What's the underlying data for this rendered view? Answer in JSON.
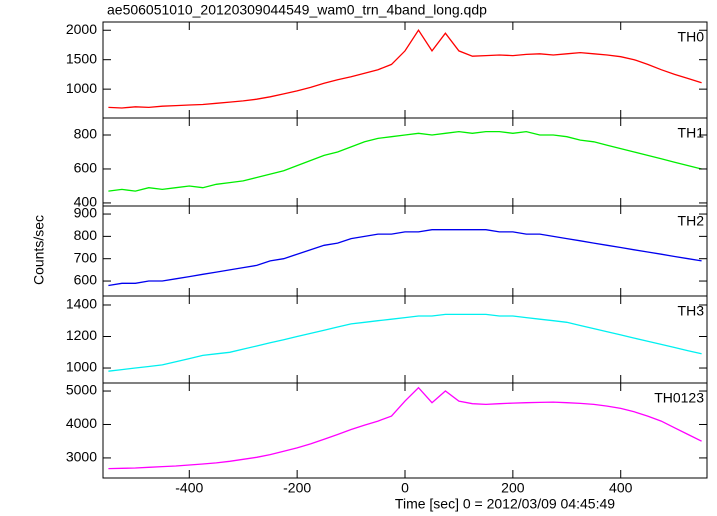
{
  "chart_data": {
    "type": "line",
    "title": "ae506051010_20120309044549_wam0_trn_4band_long.qdp",
    "x_label": "Time [sec] 0 = 2012/03/09 04:45:49",
    "y_label": "Counts/sec",
    "xlim": [
      -560,
      560
    ],
    "xticks": [
      -400,
      -200,
      0,
      200,
      400
    ],
    "x": [
      -550,
      -525,
      -500,
      -475,
      -450,
      -425,
      -400,
      -375,
      -350,
      -325,
      -300,
      -275,
      -250,
      -225,
      -200,
      -175,
      -150,
      -125,
      -100,
      -75,
      -50,
      -25,
      0,
      25,
      50,
      75,
      100,
      125,
      150,
      175,
      200,
      225,
      250,
      275,
      300,
      325,
      350,
      375,
      400,
      425,
      450,
      475,
      500,
      525,
      550
    ],
    "series": [
      {
        "name": "TH0",
        "color": "#ff0000",
        "ylim": [
          510,
          2140
        ],
        "yticks": [
          1000,
          1500,
          2000
        ],
        "values": [
          690,
          680,
          700,
          690,
          710,
          720,
          730,
          740,
          760,
          780,
          800,
          830,
          870,
          920,
          970,
          1030,
          1100,
          1160,
          1210,
          1270,
          1330,
          1420,
          1650,
          2000,
          1650,
          1950,
          1650,
          1560,
          1570,
          1580,
          1570,
          1590,
          1600,
          1580,
          1600,
          1620,
          1600,
          1580,
          1550,
          1500,
          1420,
          1330,
          1250,
          1180,
          1110
        ]
      },
      {
        "name": "TH1",
        "color": "#00ee00",
        "ylim": [
          382,
          900
        ],
        "yticks": [
          400,
          600,
          800
        ],
        "values": [
          470,
          480,
          470,
          490,
          480,
          490,
          500,
          490,
          510,
          520,
          530,
          550,
          570,
          590,
          620,
          650,
          680,
          700,
          730,
          760,
          780,
          790,
          800,
          810,
          800,
          810,
          820,
          810,
          820,
          820,
          810,
          820,
          800,
          800,
          790,
          770,
          760,
          740,
          720,
          700,
          680,
          660,
          640,
          620,
          600
        ]
      },
      {
        "name": "TH2",
        "color": "#0000ee",
        "ylim": [
          533,
          936
        ],
        "yticks": [
          600,
          700,
          800,
          900
        ],
        "values": [
          580,
          590,
          590,
          600,
          600,
          610,
          620,
          630,
          640,
          650,
          660,
          670,
          690,
          700,
          720,
          740,
          760,
          770,
          790,
          800,
          810,
          810,
          820,
          820,
          830,
          830,
          830,
          830,
          830,
          820,
          820,
          810,
          810,
          800,
          790,
          780,
          770,
          760,
          750,
          740,
          730,
          720,
          710,
          700,
          690
        ]
      },
      {
        "name": "TH3",
        "color": "#00f0f0",
        "ylim": [
          905,
          1457
        ],
        "yticks": [
          1000,
          1200,
          1400
        ],
        "values": [
          980,
          990,
          1000,
          1010,
          1020,
          1040,
          1060,
          1080,
          1090,
          1100,
          1120,
          1140,
          1160,
          1180,
          1200,
          1220,
          1240,
          1260,
          1280,
          1290,
          1300,
          1310,
          1320,
          1330,
          1330,
          1340,
          1340,
          1340,
          1340,
          1330,
          1330,
          1320,
          1310,
          1300,
          1290,
          1270,
          1250,
          1230,
          1210,
          1190,
          1170,
          1150,
          1130,
          1110,
          1090
        ]
      },
      {
        "name": "TH0123",
        "color": "#ff00ff",
        "ylim": [
          2400,
          5240
        ],
        "yticks": [
          3000,
          4000,
          5000
        ],
        "values": [
          2680,
          2690,
          2700,
          2720,
          2740,
          2760,
          2790,
          2820,
          2850,
          2900,
          2960,
          3020,
          3100,
          3200,
          3300,
          3420,
          3560,
          3700,
          3850,
          3980,
          4100,
          4250,
          4700,
          5100,
          4650,
          5000,
          4700,
          4620,
          4600,
          4620,
          4640,
          4650,
          4660,
          4670,
          4650,
          4630,
          4600,
          4550,
          4480,
          4380,
          4250,
          4100,
          3900,
          3700,
          3500
        ]
      }
    ]
  }
}
